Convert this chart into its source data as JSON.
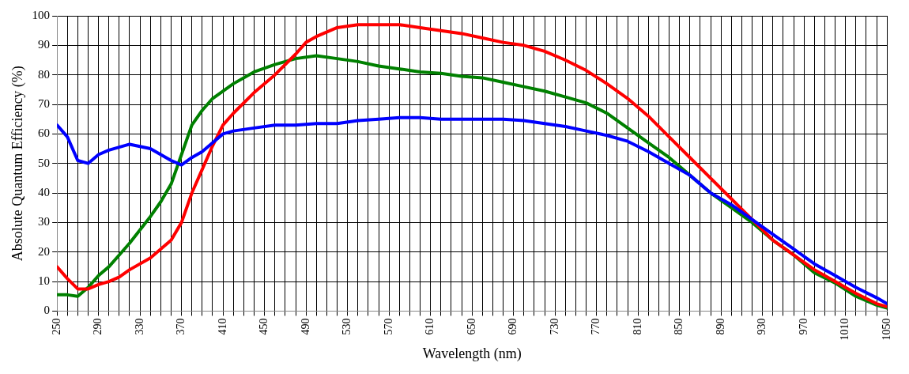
{
  "chart_data": {
    "type": "line",
    "xlabel": "Wavelength (nm)",
    "ylabel": "Absolute Quantum Efficiency (%)",
    "xlim": [
      250,
      1050
    ],
    "ylim": [
      0,
      100
    ],
    "xticks": [
      250,
      {
        "value": 260,
        "label": null
      },
      {
        "value": 270,
        "label": null
      },
      {
        "value": 280,
        "label": null
      },
      290,
      {
        "value": 300,
        "label": null
      },
      {
        "value": 310,
        "label": null
      },
      {
        "value": 320,
        "label": null
      },
      330,
      {
        "value": 340,
        "label": null
      },
      {
        "value": 350,
        "label": null
      },
      {
        "value": 360,
        "label": null
      },
      370,
      {
        "value": 380,
        "label": null
      },
      {
        "value": 390,
        "label": null
      },
      {
        "value": 400,
        "label": null
      },
      410,
      {
        "value": 420,
        "label": null
      },
      {
        "value": 430,
        "label": null
      },
      {
        "value": 440,
        "label": null
      },
      450,
      {
        "value": 460,
        "label": null
      },
      {
        "value": 470,
        "label": null
      },
      {
        "value": 480,
        "label": null
      },
      490,
      {
        "value": 500,
        "label": null
      },
      {
        "value": 510,
        "label": null
      },
      {
        "value": 520,
        "label": null
      },
      530,
      {
        "value": 540,
        "label": null
      },
      {
        "value": 550,
        "label": null
      },
      {
        "value": 560,
        "label": null
      },
      570,
      {
        "value": 580,
        "label": null
      },
      {
        "value": 590,
        "label": null
      },
      {
        "value": 600,
        "label": null
      },
      610,
      {
        "value": 620,
        "label": null
      },
      {
        "value": 630,
        "label": null
      },
      {
        "value": 640,
        "label": null
      },
      650,
      {
        "value": 660,
        "label": null
      },
      {
        "value": 670,
        "label": null
      },
      {
        "value": 680,
        "label": null
      },
      690,
      {
        "value": 700,
        "label": null
      },
      {
        "value": 710,
        "label": null
      },
      {
        "value": 720,
        "label": null
      },
      730,
      {
        "value": 740,
        "label": null
      },
      {
        "value": 750,
        "label": null
      },
      {
        "value": 760,
        "label": null
      },
      770,
      {
        "value": 780,
        "label": null
      },
      {
        "value": 790,
        "label": null
      },
      {
        "value": 800,
        "label": null
      },
      810,
      {
        "value": 820,
        "label": null
      },
      {
        "value": 830,
        "label": null
      },
      {
        "value": 840,
        "label": null
      },
      850,
      {
        "value": 860,
        "label": null
      },
      {
        "value": 870,
        "label": null
      },
      {
        "value": 880,
        "label": null
      },
      890,
      {
        "value": 900,
        "label": null
      },
      {
        "value": 910,
        "label": null
      },
      {
        "value": 920,
        "label": null
      },
      930,
      {
        "value": 940,
        "label": null
      },
      {
        "value": 950,
        "label": null
      },
      {
        "value": 960,
        "label": null
      },
      970,
      {
        "value": 980,
        "label": null
      },
      {
        "value": 990,
        "label": null
      },
      {
        "value": 1000,
        "label": null
      },
      1010,
      {
        "value": 1020,
        "label": null
      },
      {
        "value": 1030,
        "label": null
      },
      {
        "value": 1040,
        "label": null
      },
      1050
    ],
    "yticks": [
      0,
      10,
      20,
      30,
      40,
      50,
      60,
      70,
      80,
      90,
      100
    ],
    "grid": true,
    "legend": false,
    "marker": "none",
    "line_style": "solid",
    "series": [
      {
        "color": "#0000ff",
        "x": [
          250,
          260,
          270,
          280,
          290,
          300,
          320,
          340,
          350,
          360,
          370,
          380,
          390,
          400,
          410,
          420,
          440,
          460,
          480,
          500,
          520,
          540,
          560,
          580,
          600,
          620,
          640,
          660,
          680,
          700,
          720,
          740,
          760,
          780,
          800,
          820,
          840,
          860,
          880,
          900,
          920,
          940,
          960,
          980,
          1000,
          1020,
          1040,
          1050
        ],
        "values": [
          63,
          59,
          51,
          50,
          53,
          54.5,
          56.5,
          55,
          53,
          51,
          49.5,
          52,
          54,
          57,
          60,
          61,
          62,
          63,
          63,
          63.5,
          63.5,
          64.5,
          65,
          65.5,
          65.5,
          65,
          65,
          65,
          65,
          64.5,
          63.5,
          62.5,
          61,
          59.5,
          57.5,
          54,
          50,
          46,
          40,
          36,
          31,
          26,
          21,
          16,
          12,
          8,
          4.5,
          2.5
        ]
      },
      {
        "color": "#ff0000",
        "x": [
          250,
          260,
          270,
          280,
          290,
          300,
          310,
          320,
          340,
          360,
          370,
          380,
          390,
          400,
          410,
          420,
          440,
          460,
          480,
          490,
          500,
          520,
          540,
          560,
          580,
          600,
          620,
          640,
          660,
          680,
          700,
          720,
          740,
          760,
          780,
          800,
          820,
          840,
          860,
          880,
          900,
          920,
          940,
          960,
          980,
          1000,
          1020,
          1040,
          1050
        ],
        "values": [
          15,
          11,
          7.5,
          7.5,
          9,
          10,
          11.5,
          14,
          18,
          24,
          30,
          40,
          48,
          56,
          63,
          67,
          74,
          80,
          87,
          91,
          93,
          96,
          97,
          97,
          97,
          96,
          95,
          94,
          92.5,
          91,
          90,
          88,
          85,
          81.5,
          77,
          72,
          66,
          59,
          52,
          45,
          38,
          31,
          24,
          19,
          14,
          10,
          6,
          2.5,
          1.5
        ]
      },
      {
        "color": "#008000",
        "x": [
          250,
          260,
          270,
          280,
          290,
          300,
          310,
          320,
          340,
          350,
          360,
          370,
          380,
          390,
          400,
          420,
          440,
          460,
          480,
          500,
          520,
          540,
          560,
          580,
          600,
          620,
          640,
          660,
          680,
          700,
          720,
          740,
          760,
          780,
          800,
          820,
          840,
          860,
          880,
          900,
          920,
          940,
          960,
          980,
          1000,
          1020,
          1040,
          1050
        ],
        "values": [
          5.5,
          5.5,
          5,
          8,
          12,
          15,
          19,
          23,
          32,
          37,
          43,
          53,
          63,
          68,
          72,
          77,
          81,
          83.5,
          85.5,
          86.5,
          85.5,
          84.5,
          83,
          82,
          81,
          80.5,
          79.5,
          79,
          77.5,
          76,
          74.5,
          72.5,
          70.5,
          67,
          62,
          57,
          52,
          46,
          40,
          35,
          30,
          24,
          19,
          13,
          9.5,
          5,
          2,
          1
        ]
      }
    ]
  }
}
